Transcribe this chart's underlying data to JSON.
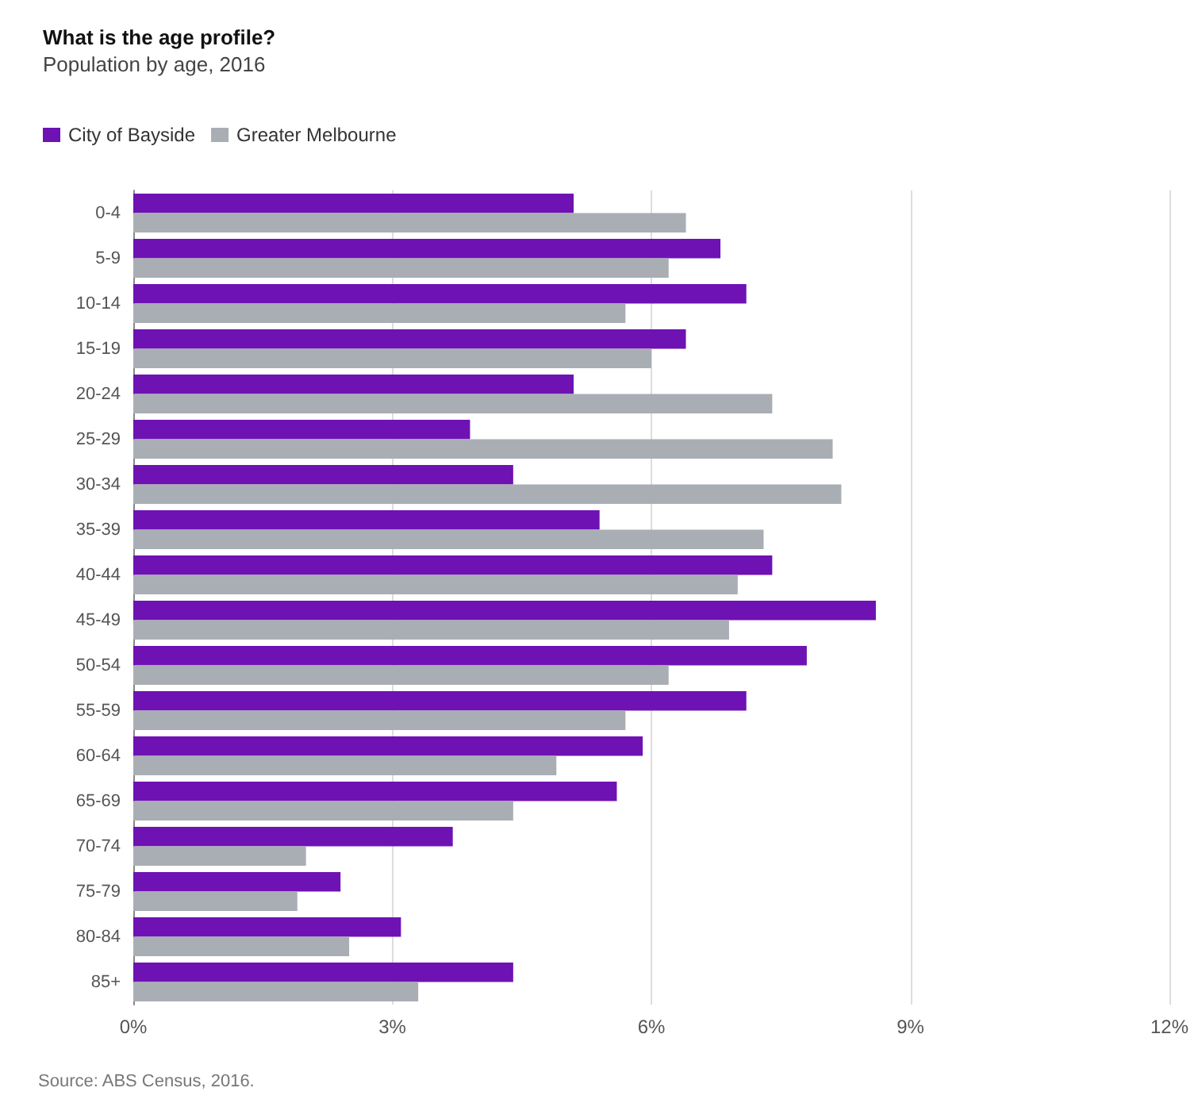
{
  "chart_data": {
    "type": "bar",
    "orientation": "horizontal",
    "title": "What is the age profile?",
    "subtitle": "Population by age, 2016",
    "categories": [
      "0-4",
      "5-9",
      "10-14",
      "15-19",
      "20-24",
      "25-29",
      "30-34",
      "35-39",
      "40-44",
      "45-49",
      "50-54",
      "55-59",
      "60-64",
      "65-69",
      "70-74",
      "75-79",
      "80-84",
      "85+"
    ],
    "series": [
      {
        "name": "City of Bayside",
        "color": "#6e12b4",
        "values": [
          5.1,
          6.8,
          7.1,
          6.4,
          5.1,
          3.9,
          4.4,
          5.4,
          7.4,
          8.6,
          7.8,
          7.1,
          5.9,
          5.6,
          3.7,
          2.4,
          3.1,
          4.4
        ]
      },
      {
        "name": "Greater Melbourne",
        "color": "#a9aeb4",
        "values": [
          6.4,
          6.2,
          5.7,
          6.0,
          7.4,
          8.1,
          8.2,
          7.3,
          7.0,
          6.9,
          6.2,
          5.7,
          4.9,
          4.4,
          2.0,
          1.9,
          2.5,
          3.3
        ]
      }
    ],
    "xlim": [
      0,
      12
    ],
    "xticks": [
      {
        "value": 0,
        "label": "0%"
      },
      {
        "value": 3,
        "label": "3%"
      },
      {
        "value": 6,
        "label": "6%"
      },
      {
        "value": 9,
        "label": "9%"
      },
      {
        "value": 12,
        "label": "12%"
      }
    ],
    "grid": "x",
    "legend": "top left",
    "annotations": [
      "Source: ABS Census, 2016."
    ]
  }
}
